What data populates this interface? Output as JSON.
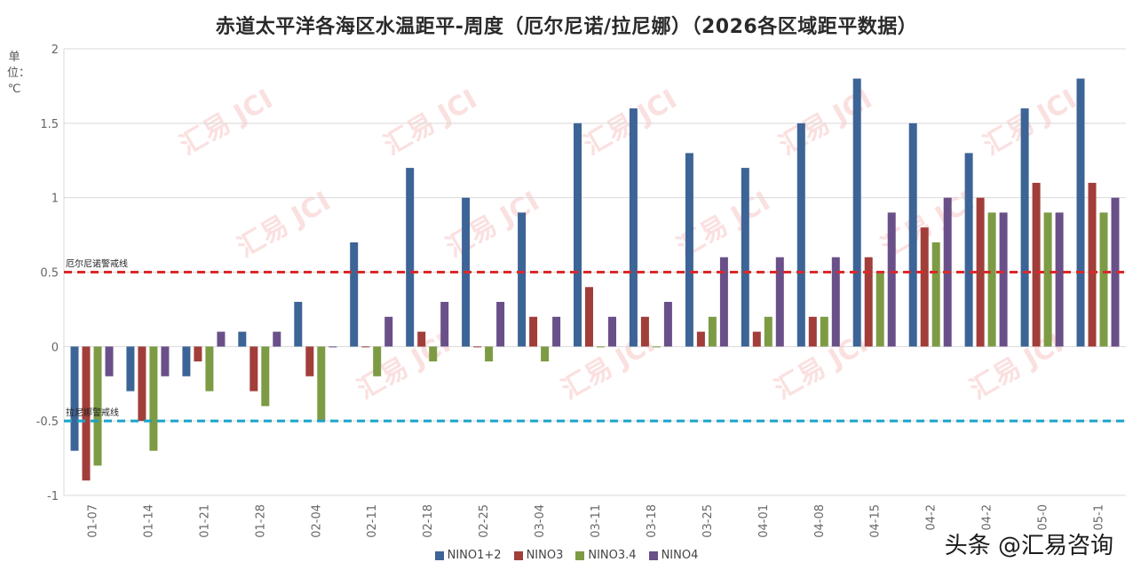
{
  "title": "赤道太平洋各海区水温距平-周度（厄尔尼诺/拉尼娜）（2026各区域距平数据）",
  "unit_label": "单位：℃",
  "credit": "头条 @汇易咨询",
  "watermark": "汇易 JCI",
  "colors": {
    "NINO1+2": "#3d6496",
    "NINO3": "#a13e3a",
    "NINO3.4": "#7d9b45",
    "NINO4": "#6a5088",
    "elnino_line": "#d9292a",
    "lanina_line": "#1aa3c9",
    "grid": "#d9d9d9"
  },
  "chart_data": {
    "type": "bar",
    "title": "赤道太平洋各海区水温距平-周度（厄尔尼诺/拉尼娜）（2026各区域距平数据）",
    "ylabel": "单位：℃",
    "ylim": [
      -1,
      2
    ],
    "yticks": [
      "-1",
      "-0.5",
      "0",
      "0.5",
      "1",
      "1.5",
      "2"
    ],
    "grid": true,
    "legend_position": "bottom",
    "categories": [
      "01-07",
      "01-14",
      "01-21",
      "01-28",
      "02-04",
      "02-11",
      "02-18",
      "02-25",
      "03-04",
      "03-11",
      "03-18",
      "03-25",
      "04-01",
      "04-08",
      "04-15",
      "04-22",
      "04-29",
      "05-06",
      "05-13"
    ],
    "category_labels": [
      "01-07",
      "01-14",
      "01-21",
      "01-28",
      "02-04",
      "02-11",
      "02-18",
      "02-25",
      "03-04",
      "03-11",
      "03-18",
      "03-25",
      "04-01",
      "04-08",
      "04-15",
      "04-2",
      "04-2",
      "05-0",
      "05-1"
    ],
    "series": [
      {
        "name": "NINO1+2",
        "values": [
          -0.7,
          -0.3,
          -0.2,
          0.1,
          0.3,
          0.7,
          1.2,
          1.0,
          0.9,
          1.5,
          1.6,
          1.3,
          1.2,
          1.5,
          1.8,
          1.5,
          1.3,
          1.6,
          1.8
        ]
      },
      {
        "name": "NINO3",
        "values": [
          -0.9,
          -0.5,
          -0.1,
          -0.3,
          -0.2,
          0.0,
          0.1,
          0.0,
          0.2,
          0.4,
          0.2,
          0.1,
          0.1,
          0.2,
          0.6,
          0.8,
          1.0,
          1.1,
          1.1
        ]
      },
      {
        "name": "NINO3.4",
        "values": [
          -0.8,
          -0.7,
          -0.3,
          -0.4,
          -0.5,
          -0.2,
          -0.1,
          -0.1,
          -0.1,
          0.0,
          0.0,
          0.2,
          0.2,
          0.2,
          0.5,
          0.7,
          0.9,
          0.9,
          0.9
        ]
      },
      {
        "name": "NINO4",
        "values": [
          -0.2,
          -0.2,
          0.1,
          0.1,
          0.0,
          0.2,
          0.3,
          0.3,
          0.2,
          0.2,
          0.3,
          0.6,
          0.6,
          0.6,
          0.9,
          1.0,
          0.9,
          0.9,
          1.0
        ]
      }
    ],
    "reference_lines": [
      {
        "label": "厄尔尼诺警戒线",
        "value": 0.5,
        "style": "dashed",
        "color": "#d9292a"
      },
      {
        "label": "拉尼娜警戒线",
        "value": -0.5,
        "style": "dashed",
        "color": "#1aa3c9"
      }
    ]
  }
}
